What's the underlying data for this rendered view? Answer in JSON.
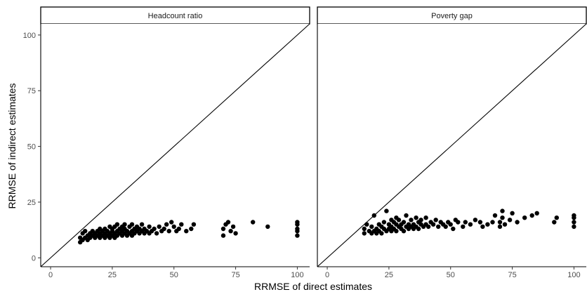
{
  "chart_data": {
    "type": "scatter",
    "xlabel": "RRMSE of direct estimates",
    "ylabel": "RRMSE of indirect estimates",
    "xlim": [
      -4,
      105
    ],
    "ylim": [
      -4,
      105
    ],
    "xticks": [
      0,
      25,
      50,
      75,
      100
    ],
    "yticks": [
      0,
      25,
      50,
      75,
      100
    ],
    "reference_line": "y = x",
    "grid": false,
    "panels": [
      {
        "title": "Headcount ratio",
        "points": [
          [
            12,
            7
          ],
          [
            12,
            9
          ],
          [
            13,
            8
          ],
          [
            13,
            11
          ],
          [
            14,
            9
          ],
          [
            14,
            12
          ],
          [
            15,
            8
          ],
          [
            15,
            10
          ],
          [
            16,
            9
          ],
          [
            16,
            11
          ],
          [
            17,
            10
          ],
          [
            17,
            12
          ],
          [
            18,
            9
          ],
          [
            18,
            11
          ],
          [
            19,
            10
          ],
          [
            19,
            12
          ],
          [
            20,
            9
          ],
          [
            20,
            11
          ],
          [
            20,
            13
          ],
          [
            21,
            10
          ],
          [
            21,
            12
          ],
          [
            22,
            9
          ],
          [
            22,
            11
          ],
          [
            22,
            13
          ],
          [
            23,
            10
          ],
          [
            23,
            12
          ],
          [
            24,
            9
          ],
          [
            24,
            11
          ],
          [
            24,
            14
          ],
          [
            25,
            10
          ],
          [
            25,
            12
          ],
          [
            25,
            13
          ],
          [
            26,
            9
          ],
          [
            26,
            11
          ],
          [
            26,
            14
          ],
          [
            27,
            10
          ],
          [
            27,
            12
          ],
          [
            27,
            15
          ],
          [
            28,
            11
          ],
          [
            28,
            13
          ],
          [
            29,
            10
          ],
          [
            29,
            12
          ],
          [
            29,
            14
          ],
          [
            30,
            11
          ],
          [
            30,
            13
          ],
          [
            30,
            15
          ],
          [
            31,
            10
          ],
          [
            31,
            12
          ],
          [
            32,
            11
          ],
          [
            32,
            14
          ],
          [
            33,
            10
          ],
          [
            33,
            12
          ],
          [
            33,
            15
          ],
          [
            34,
            11
          ],
          [
            34,
            13
          ],
          [
            35,
            12
          ],
          [
            35,
            14
          ],
          [
            36,
            11
          ],
          [
            36,
            13
          ],
          [
            37,
            12
          ],
          [
            37,
            15
          ],
          [
            38,
            11
          ],
          [
            38,
            13
          ],
          [
            39,
            12
          ],
          [
            40,
            11
          ],
          [
            40,
            14
          ],
          [
            41,
            12
          ],
          [
            42,
            13
          ],
          [
            43,
            11
          ],
          [
            44,
            14
          ],
          [
            45,
            12
          ],
          [
            46,
            13
          ],
          [
            47,
            15
          ],
          [
            48,
            12
          ],
          [
            49,
            16
          ],
          [
            50,
            14
          ],
          [
            51,
            12
          ],
          [
            52,
            13
          ],
          [
            53,
            15
          ],
          [
            55,
            12
          ],
          [
            57,
            13
          ],
          [
            58,
            15
          ],
          [
            70,
            10
          ],
          [
            70,
            13
          ],
          [
            71,
            15
          ],
          [
            72,
            16
          ],
          [
            73,
            12
          ],
          [
            74,
            14
          ],
          [
            75,
            11
          ],
          [
            82,
            16
          ],
          [
            88,
            14
          ],
          [
            100,
            10
          ],
          [
            100,
            12
          ],
          [
            100,
            13
          ],
          [
            100,
            15
          ],
          [
            100,
            16
          ]
        ]
      },
      {
        "title": "Poverty gap",
        "points": [
          [
            15,
            11
          ],
          [
            15,
            13
          ],
          [
            16,
            15
          ],
          [
            17,
            12
          ],
          [
            18,
            11
          ],
          [
            18,
            14
          ],
          [
            19,
            12
          ],
          [
            19,
            19
          ],
          [
            20,
            11
          ],
          [
            20,
            13
          ],
          [
            21,
            12
          ],
          [
            21,
            15
          ],
          [
            22,
            11
          ],
          [
            22,
            14
          ],
          [
            23,
            13
          ],
          [
            23,
            16
          ],
          [
            24,
            12
          ],
          [
            24,
            21
          ],
          [
            25,
            13
          ],
          [
            25,
            15
          ],
          [
            26,
            12
          ],
          [
            26,
            14
          ],
          [
            26,
            17
          ],
          [
            27,
            13
          ],
          [
            27,
            16
          ],
          [
            28,
            12
          ],
          [
            28,
            15
          ],
          [
            28,
            18
          ],
          [
            29,
            14
          ],
          [
            29,
            17
          ],
          [
            30,
            13
          ],
          [
            30,
            15
          ],
          [
            31,
            12
          ],
          [
            31,
            16
          ],
          [
            32,
            14
          ],
          [
            32,
            19
          ],
          [
            33,
            13
          ],
          [
            33,
            15
          ],
          [
            34,
            14
          ],
          [
            34,
            17
          ],
          [
            35,
            13
          ],
          [
            35,
            15
          ],
          [
            36,
            14
          ],
          [
            36,
            18
          ],
          [
            37,
            13
          ],
          [
            37,
            16
          ],
          [
            38,
            15
          ],
          [
            38,
            17
          ],
          [
            39,
            14
          ],
          [
            40,
            15
          ],
          [
            40,
            18
          ],
          [
            41,
            14
          ],
          [
            42,
            16
          ],
          [
            43,
            15
          ],
          [
            44,
            17
          ],
          [
            45,
            14
          ],
          [
            46,
            16
          ],
          [
            47,
            15
          ],
          [
            48,
            14
          ],
          [
            49,
            16
          ],
          [
            50,
            15
          ],
          [
            51,
            13
          ],
          [
            52,
            17
          ],
          [
            53,
            16
          ],
          [
            55,
            14
          ],
          [
            56,
            16
          ],
          [
            58,
            15
          ],
          [
            60,
            17
          ],
          [
            62,
            16
          ],
          [
            63,
            14
          ],
          [
            65,
            15
          ],
          [
            67,
            16
          ],
          [
            68,
            19
          ],
          [
            70,
            14
          ],
          [
            70,
            16
          ],
          [
            71,
            18
          ],
          [
            71,
            21
          ],
          [
            72,
            15
          ],
          [
            74,
            17
          ],
          [
            75,
            20
          ],
          [
            77,
            16
          ],
          [
            80,
            18
          ],
          [
            83,
            19
          ],
          [
            85,
            20
          ],
          [
            92,
            16
          ],
          [
            93,
            18
          ],
          [
            100,
            14
          ],
          [
            100,
            16
          ],
          [
            100,
            18
          ],
          [
            100,
            19
          ]
        ]
      }
    ]
  }
}
